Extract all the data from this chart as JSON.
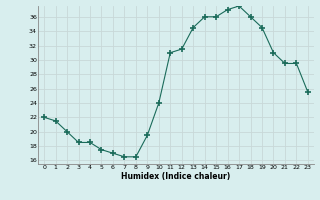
{
  "x": [
    0,
    1,
    2,
    3,
    4,
    5,
    6,
    7,
    8,
    9,
    10,
    11,
    12,
    13,
    14,
    15,
    16,
    17,
    18,
    19,
    20,
    21,
    22,
    23
  ],
  "y": [
    22,
    21.5,
    20,
    18.5,
    18.5,
    17.5,
    17,
    16.5,
    16.5,
    19.5,
    24,
    31,
    31.5,
    34.5,
    36,
    36,
    37,
    37.5,
    36,
    34.5,
    31,
    29.5,
    29.5,
    25.5
  ],
  "line_color": "#1a6b5a",
  "marker": "+",
  "marker_size": 3,
  "bg_color": "#d8eeee",
  "grid_color": "#c8d8d8",
  "xlabel": "Humidex (Indice chaleur)",
  "xlim": [
    -0.5,
    23.5
  ],
  "ylim": [
    15.5,
    37.5
  ],
  "yticks": [
    16,
    18,
    20,
    22,
    24,
    26,
    28,
    30,
    32,
    34,
    36
  ],
  "xticks": [
    0,
    1,
    2,
    3,
    4,
    5,
    6,
    7,
    8,
    9,
    10,
    11,
    12,
    13,
    14,
    15,
    16,
    17,
    18,
    19,
    20,
    21,
    22,
    23
  ]
}
